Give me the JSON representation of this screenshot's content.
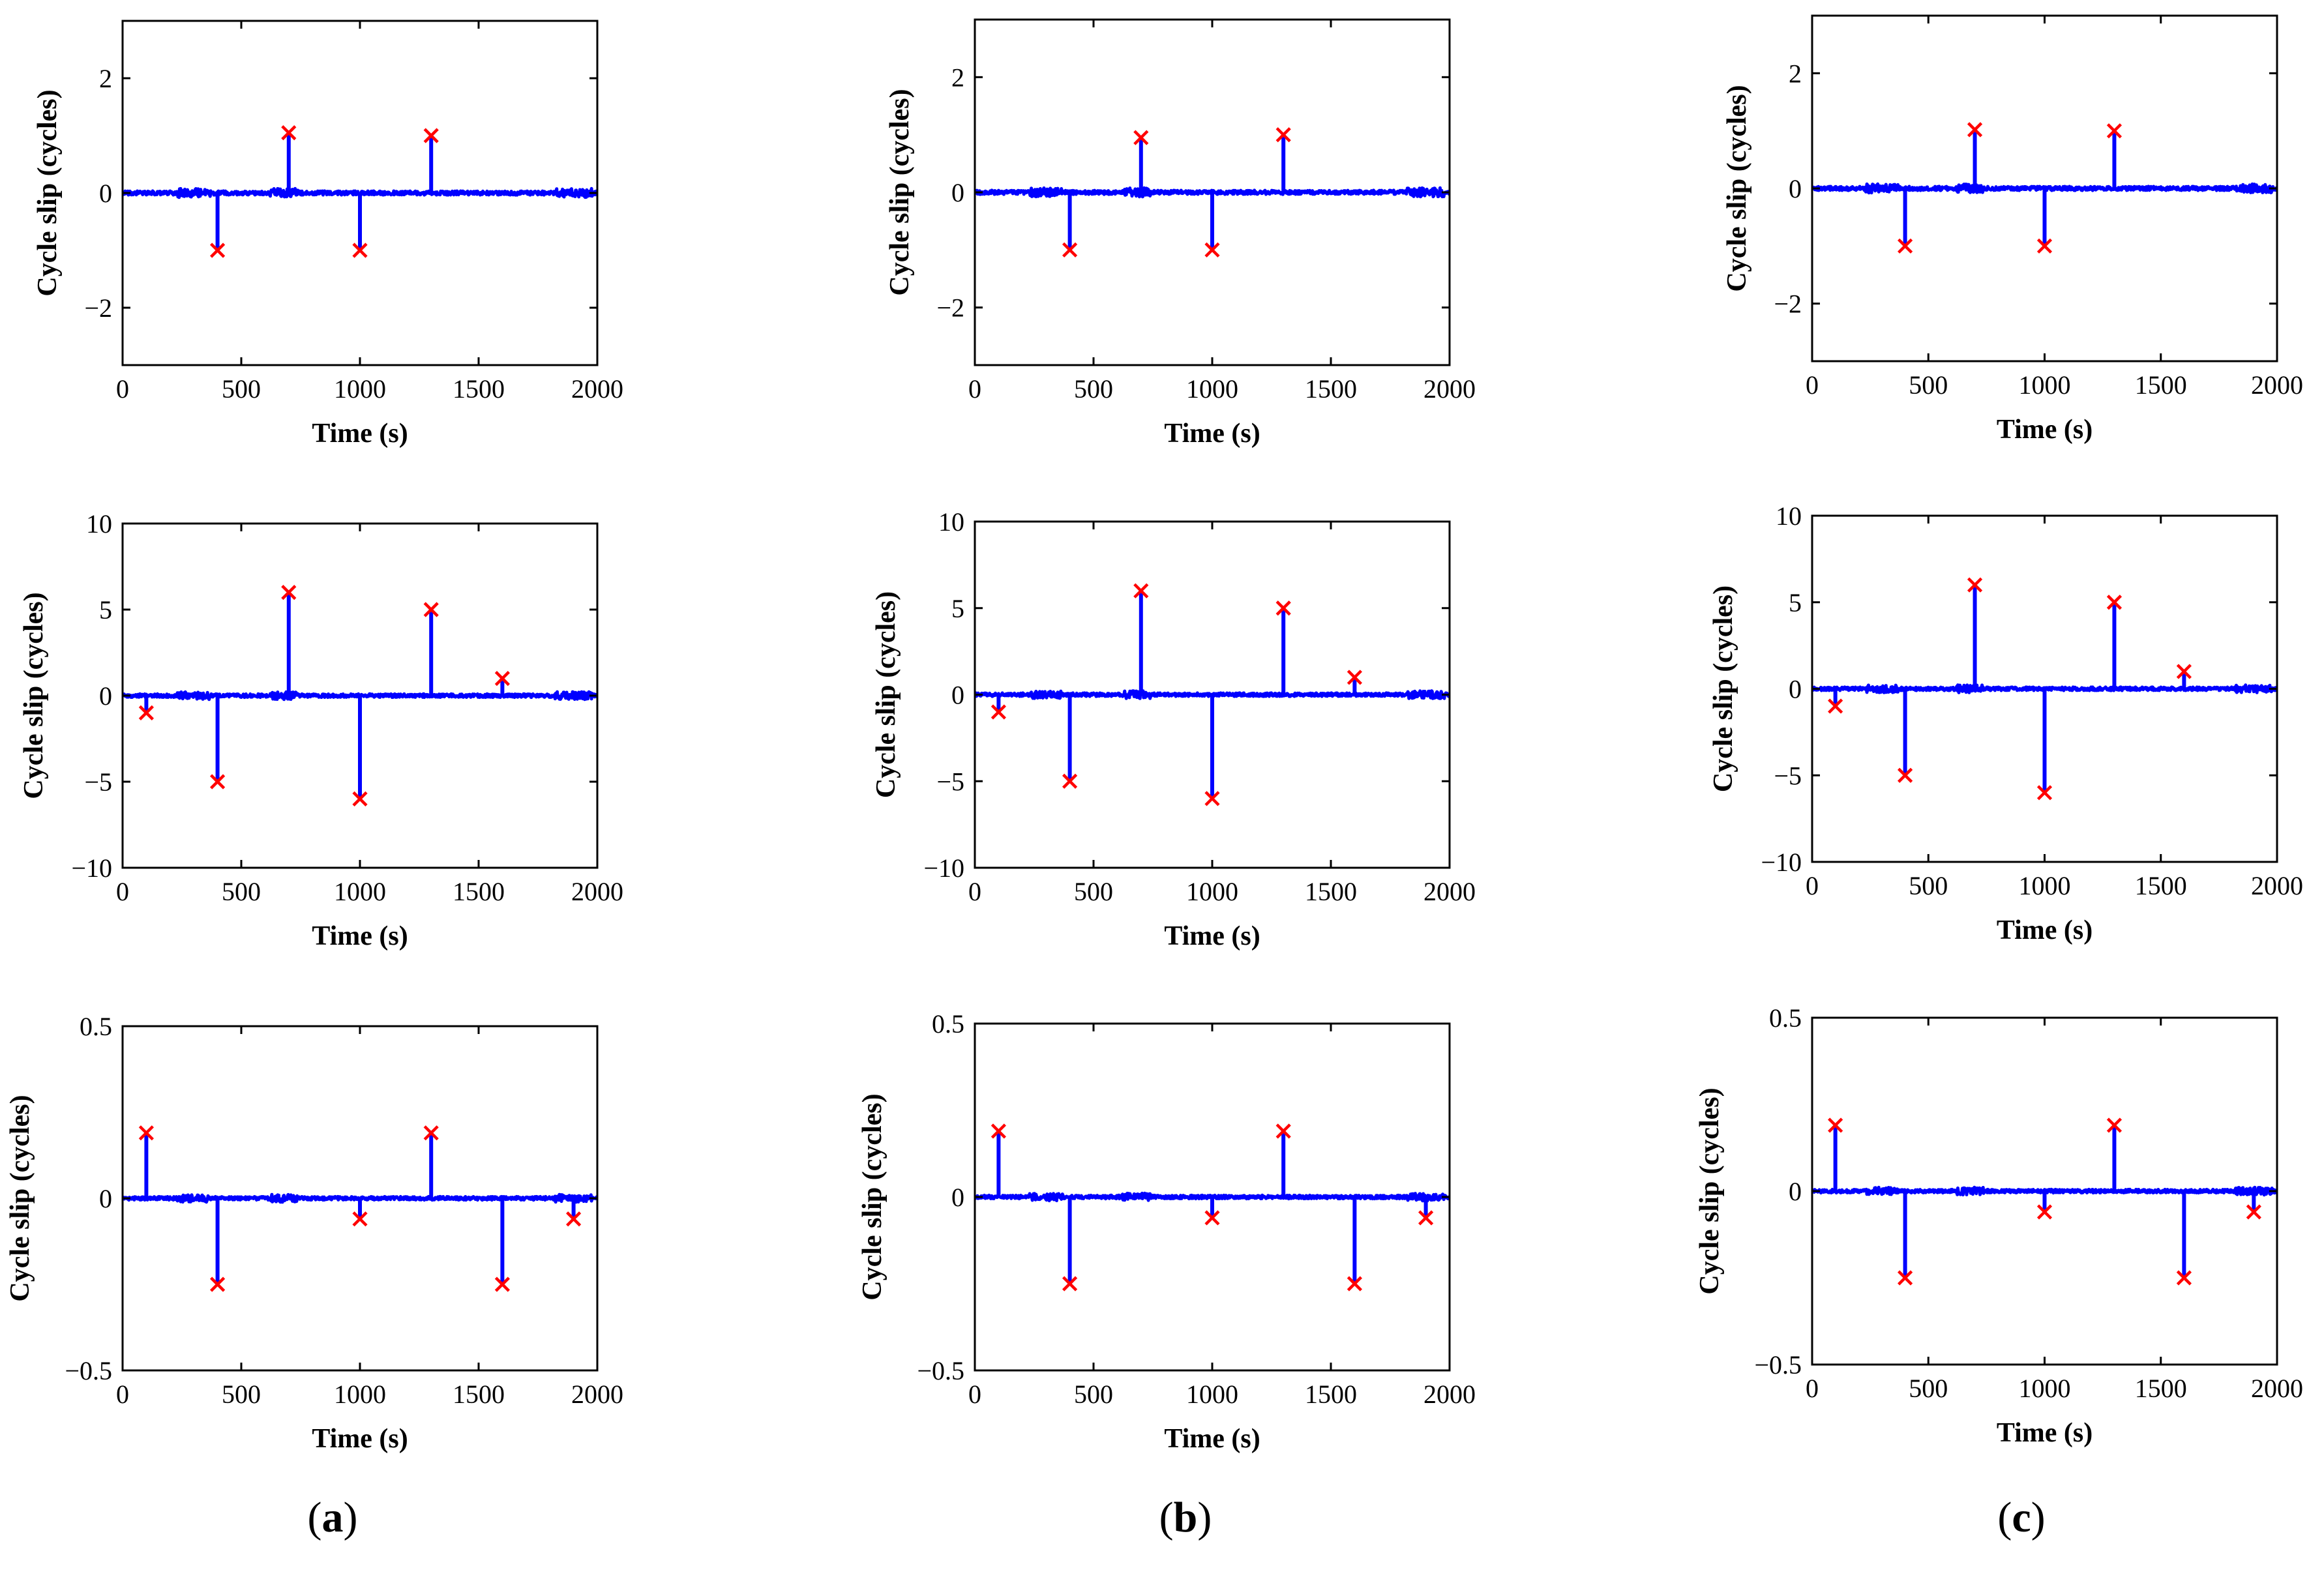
{
  "figure": {
    "panel_labels": [
      "a",
      "b",
      "c"
    ],
    "colors": {
      "signal": "#0000ff",
      "marker": "#ff0000",
      "axis": "#000000"
    }
  },
  "chart_data": [
    {
      "id": "a1",
      "column": "a",
      "row": 1,
      "type": "line",
      "title": "",
      "xlabel": "Time (s)",
      "ylabel": "Cycle slip (cycles)",
      "xlim": [
        0,
        2000
      ],
      "ylim": [
        -3,
        3
      ],
      "xticks": [
        0,
        500,
        1000,
        1500,
        2000
      ],
      "xtick_labels": [
        "0",
        "500",
        "1000",
        "1500",
        "2000"
      ],
      "yticks": [
        -2,
        0,
        2
      ],
      "ytick_labels": [
        "−2",
        "0",
        "2"
      ],
      "slips": [
        {
          "t": 400,
          "v": -1
        },
        {
          "t": 700,
          "v": 1.05
        },
        {
          "t": 1000,
          "v": -1
        },
        {
          "t": 1300,
          "v": 1
        }
      ],
      "noise_amplitude": 0.035
    },
    {
      "id": "b1",
      "column": "b",
      "row": 1,
      "type": "line",
      "title": "",
      "xlabel": "Time (s)",
      "ylabel": "Cycle slip (cycles)",
      "xlim": [
        0,
        2000
      ],
      "ylim": [
        -3,
        3
      ],
      "xticks": [
        0,
        500,
        1000,
        1500,
        2000
      ],
      "xtick_labels": [
        "0",
        "500",
        "1000",
        "1500",
        "2000"
      ],
      "yticks": [
        -2,
        0,
        2
      ],
      "ytick_labels": [
        "−2",
        "0",
        "2"
      ],
      "slips": [
        {
          "t": 400,
          "v": -1
        },
        {
          "t": 700,
          "v": 0.95
        },
        {
          "t": 1000,
          "v": -1
        },
        {
          "t": 1300,
          "v": 1
        }
      ],
      "noise_amplitude": 0.035
    },
    {
      "id": "c1",
      "column": "c",
      "row": 1,
      "type": "line",
      "title": "",
      "xlabel": "Time (s)",
      "ylabel": "Cycle slip (cycles)",
      "xlim": [
        0,
        2000
      ],
      "ylim": [
        -3,
        3
      ],
      "xticks": [
        0,
        500,
        1000,
        1500,
        2000
      ],
      "xtick_labels": [
        "0",
        "500",
        "1000",
        "1500",
        "2000"
      ],
      "yticks": [
        -2,
        0,
        2
      ],
      "ytick_labels": [
        "−2",
        "0",
        "2"
      ],
      "slips": [
        {
          "t": 400,
          "v": -1
        },
        {
          "t": 700,
          "v": 1.02
        },
        {
          "t": 1000,
          "v": -1
        },
        {
          "t": 1300,
          "v": 1
        }
      ],
      "noise_amplitude": 0.035
    },
    {
      "id": "a2",
      "column": "a",
      "row": 2,
      "type": "line",
      "title": "",
      "xlabel": "Time (s)",
      "ylabel": "Cycle slip (cycles)",
      "xlim": [
        0,
        2000
      ],
      "ylim": [
        -10,
        10
      ],
      "xticks": [
        0,
        500,
        1000,
        1500,
        2000
      ],
      "xtick_labels": [
        "0",
        "500",
        "1000",
        "1500",
        "2000"
      ],
      "yticks": [
        -10,
        -5,
        0,
        5,
        10
      ],
      "ytick_labels": [
        "−10",
        "−5",
        "0",
        "5",
        "10"
      ],
      "slips": [
        {
          "t": 100,
          "v": -1
        },
        {
          "t": 400,
          "v": -5
        },
        {
          "t": 700,
          "v": 6
        },
        {
          "t": 1000,
          "v": -6
        },
        {
          "t": 1300,
          "v": 5
        },
        {
          "t": 1600,
          "v": 1
        }
      ],
      "noise_amplitude": 0.1
    },
    {
      "id": "b2",
      "column": "b",
      "row": 2,
      "type": "line",
      "title": "",
      "xlabel": "Time (s)",
      "ylabel": "Cycle slip (cycles)",
      "xlim": [
        0,
        2000
      ],
      "ylim": [
        -10,
        10
      ],
      "xticks": [
        0,
        500,
        1000,
        1500,
        2000
      ],
      "xtick_labels": [
        "0",
        "500",
        "1000",
        "1500",
        "2000"
      ],
      "yticks": [
        -10,
        -5,
        0,
        5,
        10
      ],
      "ytick_labels": [
        "−10",
        "−5",
        "0",
        "5",
        "10"
      ],
      "slips": [
        {
          "t": 100,
          "v": -1
        },
        {
          "t": 400,
          "v": -5
        },
        {
          "t": 700,
          "v": 6
        },
        {
          "t": 1000,
          "v": -6
        },
        {
          "t": 1300,
          "v": 5
        },
        {
          "t": 1600,
          "v": 1
        }
      ],
      "noise_amplitude": 0.1
    },
    {
      "id": "c2",
      "column": "c",
      "row": 2,
      "type": "line",
      "title": "",
      "xlabel": "Time (s)",
      "ylabel": "Cycle slip (cycles)",
      "xlim": [
        0,
        2000
      ],
      "ylim": [
        -10,
        10
      ],
      "xticks": [
        0,
        500,
        1000,
        1500,
        2000
      ],
      "xtick_labels": [
        "0",
        "500",
        "1000",
        "1500",
        "2000"
      ],
      "yticks": [
        -10,
        -5,
        0,
        5,
        10
      ],
      "ytick_labels": [
        "−10",
        "−5",
        "0",
        "5",
        "10"
      ],
      "slips": [
        {
          "t": 100,
          "v": -1
        },
        {
          "t": 400,
          "v": -5
        },
        {
          "t": 700,
          "v": 6
        },
        {
          "t": 1000,
          "v": -6
        },
        {
          "t": 1300,
          "v": 5
        },
        {
          "t": 1600,
          "v": 1
        }
      ],
      "noise_amplitude": 0.1
    },
    {
      "id": "a3",
      "column": "a",
      "row": 3,
      "type": "line",
      "title": "",
      "xlabel": "Time (s)",
      "ylabel": "Cycle slip (cycles)",
      "xlim": [
        0,
        2000
      ],
      "ylim": [
        -0.5,
        0.5
      ],
      "xticks": [
        0,
        500,
        1000,
        1500,
        2000
      ],
      "xtick_labels": [
        "0",
        "500",
        "1000",
        "1500",
        "2000"
      ],
      "yticks": [
        -0.5,
        0,
        0.5
      ],
      "ytick_labels": [
        "−0.5",
        "0",
        "0.5"
      ],
      "slips": [
        {
          "t": 100,
          "v": 0.19
        },
        {
          "t": 400,
          "v": -0.25
        },
        {
          "t": 1000,
          "v": -0.06
        },
        {
          "t": 1300,
          "v": 0.19
        },
        {
          "t": 1600,
          "v": -0.25
        },
        {
          "t": 1900,
          "v": -0.06
        }
      ],
      "noise_amplitude": 0.005
    },
    {
      "id": "b3",
      "column": "b",
      "row": 3,
      "type": "line",
      "title": "",
      "xlabel": "Time (s)",
      "ylabel": "Cycle slip (cycles)",
      "xlim": [
        0,
        2000
      ],
      "ylim": [
        -0.5,
        0.5
      ],
      "xticks": [
        0,
        500,
        1000,
        1500,
        2000
      ],
      "xtick_labels": [
        "0",
        "500",
        "1000",
        "1500",
        "2000"
      ],
      "yticks": [
        -0.5,
        0,
        0.5
      ],
      "ytick_labels": [
        "−0.5",
        "0",
        "0.5"
      ],
      "slips": [
        {
          "t": 100,
          "v": 0.19
        },
        {
          "t": 400,
          "v": -0.25
        },
        {
          "t": 1000,
          "v": -0.06
        },
        {
          "t": 1300,
          "v": 0.19
        },
        {
          "t": 1600,
          "v": -0.25
        },
        {
          "t": 1900,
          "v": -0.06
        }
      ],
      "noise_amplitude": 0.005
    },
    {
      "id": "c3",
      "column": "c",
      "row": 3,
      "type": "line",
      "title": "",
      "xlabel": "Time (s)",
      "ylabel": "Cycle slip (cycles)",
      "xlim": [
        0,
        2000
      ],
      "ylim": [
        -0.5,
        0.5
      ],
      "xticks": [
        0,
        500,
        1000,
        1500,
        2000
      ],
      "xtick_labels": [
        "0",
        "500",
        "1000",
        "1500",
        "2000"
      ],
      "yticks": [
        -0.5,
        0,
        0.5
      ],
      "ytick_labels": [
        "−0.5",
        "0",
        "0.5"
      ],
      "slips": [
        {
          "t": 100,
          "v": 0.19
        },
        {
          "t": 400,
          "v": -0.25
        },
        {
          "t": 1000,
          "v": -0.06
        },
        {
          "t": 1300,
          "v": 0.19
        },
        {
          "t": 1600,
          "v": -0.25
        },
        {
          "t": 1900,
          "v": -0.06
        }
      ],
      "noise_amplitude": 0.005
    }
  ]
}
